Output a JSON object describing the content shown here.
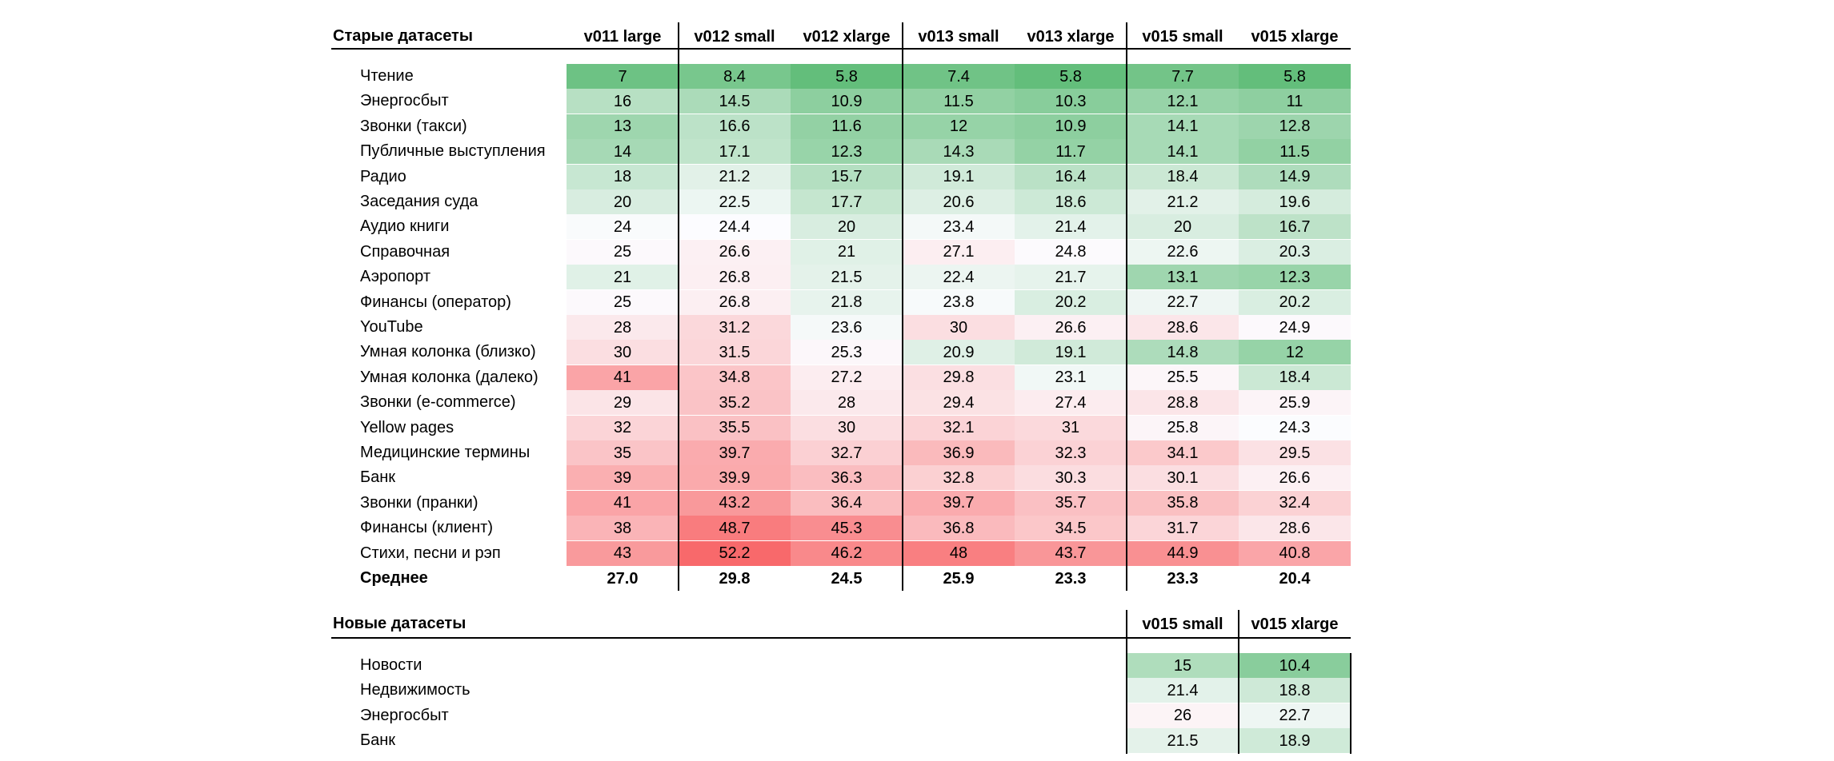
{
  "old": {
    "title": "Старые датасеты",
    "columns": [
      "v011 large",
      "v012 small",
      "v012 xlarge",
      "v013 small",
      "v013 xlarge",
      "v015 small",
      "v015 xlarge"
    ],
    "rows": [
      {
        "name": "Чтение",
        "values": [
          "7",
          "8.4",
          "5.8",
          "7.4",
          "5.8",
          "7.7",
          "5.8"
        ]
      },
      {
        "name": "Энергосбыт",
        "values": [
          "16",
          "14.5",
          "10.9",
          "11.5",
          "10.3",
          "12.1",
          "11"
        ]
      },
      {
        "name": "Звонки (такси)",
        "values": [
          "13",
          "16.6",
          "11.6",
          "12",
          "10.9",
          "14.1",
          "12.8"
        ]
      },
      {
        "name": "Публичные выступления",
        "values": [
          "14",
          "17.1",
          "12.3",
          "14.3",
          "11.7",
          "14.1",
          "11.5"
        ]
      },
      {
        "name": "Радио",
        "values": [
          "18",
          "21.2",
          "15.7",
          "19.1",
          "16.4",
          "18.4",
          "14.9"
        ]
      },
      {
        "name": "Заседания суда",
        "values": [
          "20",
          "22.5",
          "17.7",
          "20.6",
          "18.6",
          "21.2",
          "19.6"
        ]
      },
      {
        "name": "Аудио книги",
        "values": [
          "24",
          "24.4",
          "20",
          "23.4",
          "21.4",
          "20",
          "16.7"
        ]
      },
      {
        "name": "Справочная",
        "values": [
          "25",
          "26.6",
          "21",
          "27.1",
          "24.8",
          "22.6",
          "20.3"
        ]
      },
      {
        "name": "Аэропорт",
        "values": [
          "21",
          "26.8",
          "21.5",
          "22.4",
          "21.7",
          "13.1",
          "12.3"
        ]
      },
      {
        "name": "Финансы (оператор)",
        "values": [
          "25",
          "26.8",
          "21.8",
          "23.8",
          "20.2",
          "22.7",
          "20.2"
        ]
      },
      {
        "name": "YouTube",
        "values": [
          "28",
          "31.2",
          "23.6",
          "30",
          "26.6",
          "28.6",
          "24.9"
        ]
      },
      {
        "name": "Умная колонка (близко)",
        "values": [
          "30",
          "31.5",
          "25.3",
          "20.9",
          "19.1",
          "14.8",
          "12"
        ]
      },
      {
        "name": "Умная колонка (далеко)",
        "values": [
          "41",
          "34.8",
          "27.2",
          "29.8",
          "23.1",
          "25.5",
          "18.4"
        ]
      },
      {
        "name": "Звонки (e-commerce)",
        "values": [
          "29",
          "35.2",
          "28",
          "29.4",
          "27.4",
          "28.8",
          "25.9"
        ]
      },
      {
        "name": "Yellow pages",
        "values": [
          "32",
          "35.5",
          "30",
          "32.1",
          "31",
          "25.8",
          "24.3"
        ]
      },
      {
        "name": "Медицинские термины",
        "values": [
          "35",
          "39.7",
          "32.7",
          "36.9",
          "32.3",
          "34.1",
          "29.5"
        ]
      },
      {
        "name": "Банк",
        "values": [
          "39",
          "39.9",
          "36.3",
          "32.8",
          "30.3",
          "30.1",
          "26.6"
        ]
      },
      {
        "name": "Звонки (пранки)",
        "values": [
          "41",
          "43.2",
          "36.4",
          "39.7",
          "35.7",
          "35.8",
          "32.4"
        ]
      },
      {
        "name": "Финансы (клиент)",
        "values": [
          "38",
          "48.7",
          "45.3",
          "36.8",
          "34.5",
          "31.7",
          "28.6"
        ]
      },
      {
        "name": "Стихи, песни и рэп",
        "values": [
          "43",
          "52.2",
          "46.2",
          "48",
          "43.7",
          "44.9",
          "40.8"
        ]
      }
    ],
    "average_label": "Среднее",
    "averages": [
      "27.0",
      "29.8",
      "24.5",
      "25.9",
      "23.3",
      "23.3",
      "20.4"
    ]
  },
  "new": {
    "title": "Новые датасеты",
    "columns": [
      "v015 small",
      "v015 xlarge"
    ],
    "rows": [
      {
        "name": "Новости",
        "values": [
          "15",
          "10.4"
        ]
      },
      {
        "name": "Недвижимость",
        "values": [
          "21.4",
          "18.8"
        ]
      },
      {
        "name": "Энергосбыт",
        "values": [
          "26",
          "22.7"
        ]
      },
      {
        "name": "Банк",
        "values": [
          "21.5",
          "18.9"
        ]
      }
    ]
  },
  "colors": {
    "low": "#63be7b",
    "mid": "#fcfcff",
    "high": "#f8696b"
  }
}
